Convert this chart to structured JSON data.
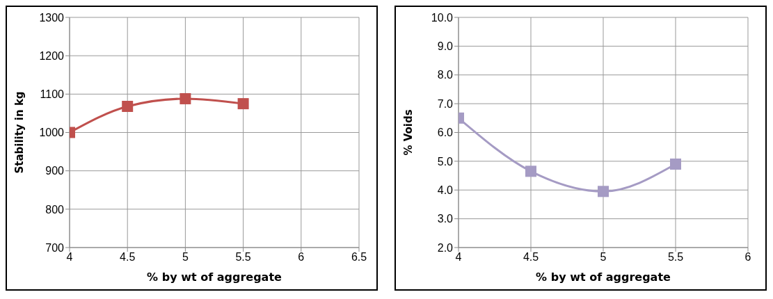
{
  "chart_data": [
    {
      "type": "line",
      "xlabel": "% by wt of aggregate",
      "ylabel": "Stability in kg",
      "x": [
        4,
        4.5,
        5,
        5.5
      ],
      "series": [
        {
          "color": "#c0504d",
          "values": [
            1000,
            1068,
            1088,
            1075
          ]
        }
      ],
      "xlim": [
        4,
        6.5
      ],
      "xticks": [
        4,
        4.5,
        5,
        5.5,
        6,
        6.5
      ],
      "ylim": [
        700,
        1300
      ],
      "yticks": [
        700,
        800,
        900,
        1000,
        1100,
        1200,
        1300
      ],
      "grid": true,
      "marker": "square",
      "legend": false
    },
    {
      "type": "line",
      "xlabel": "% by wt of aggregate",
      "ylabel": "% Voids",
      "x": [
        4,
        4.5,
        5,
        5.5
      ],
      "series": [
        {
          "color": "#a59bc4",
          "values": [
            6.5,
            4.65,
            3.95,
            4.9
          ]
        }
      ],
      "xlim": [
        4,
        6
      ],
      "xticks": [
        4,
        4.5,
        5,
        5.5,
        6
      ],
      "ylim": [
        2,
        10
      ],
      "yticks": [
        {
          "value": 2,
          "label": "2.0"
        },
        {
          "value": 3,
          "label": "3.0"
        },
        {
          "value": 4,
          "label": "4.0"
        },
        {
          "value": 5,
          "label": "5.0"
        },
        {
          "value": 6,
          "label": "6.0"
        },
        {
          "value": 7,
          "label": "7.0"
        },
        {
          "value": 8,
          "label": "8.0"
        },
        {
          "value": 9,
          "label": "9.0"
        },
        {
          "value": 10,
          "label": "10.0"
        }
      ],
      "grid": true,
      "marker": "square",
      "legend": false
    }
  ]
}
